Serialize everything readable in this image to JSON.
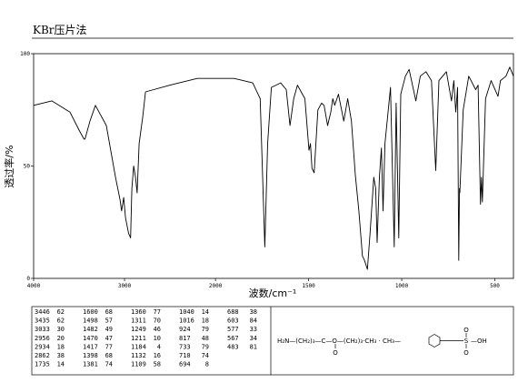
{
  "chart_data": {
    "type": "line",
    "title": "KBr压片法",
    "xlabel": "波数/cm⁻¹",
    "ylabel": "透过率/%",
    "xlim": [
      4000,
      400
    ],
    "ylim": [
      0,
      100
    ],
    "x_scale_break": 2000,
    "xticks": [
      4000,
      3000,
      2000,
      1500,
      1000,
      500
    ],
    "yticks": [
      0,
      50,
      100
    ],
    "color": "#000000",
    "x": [
      4000,
      3800,
      3600,
      3500,
      3446,
      3435,
      3380,
      3320,
      3200,
      3100,
      3050,
      3033,
      3010,
      2990,
      2956,
      2934,
      2920,
      2900,
      2880,
      2862,
      2840,
      2800,
      2770,
      2500,
      2200,
      2000,
      1900,
      1800,
      1760,
      1735,
      1720,
      1700,
      1650,
      1620,
      1600,
      1580,
      1560,
      1520,
      1498,
      1490,
      1482,
      1470,
      1450,
      1430,
      1417,
      1398,
      1381,
      1370,
      1360,
      1340,
      1311,
      1290,
      1270,
      1249,
      1230,
      1211,
      1200,
      1184,
      1170,
      1150,
      1140,
      1132,
      1120,
      1109,
      1100,
      1090,
      1060,
      1040,
      1030,
      1016,
      1005,
      980,
      960,
      924,
      900,
      870,
      840,
      817,
      800,
      760,
      733,
      720,
      710,
      700,
      694,
      690,
      688,
      670,
      640,
      603,
      590,
      577,
      572,
      567,
      550,
      520,
      483,
      470,
      440,
      420,
      400
    ],
    "values": [
      77,
      79,
      74,
      66,
      62,
      62,
      70,
      77,
      68,
      45,
      35,
      30,
      36,
      27,
      20,
      18,
      40,
      50,
      45,
      38,
      60,
      72,
      83,
      86,
      89,
      89,
      89,
      87,
      80,
      14,
      60,
      85,
      87,
      84,
      68,
      80,
      86,
      80,
      57,
      60,
      49,
      47,
      75,
      78,
      77,
      68,
      74,
      80,
      77,
      82,
      70,
      80,
      70,
      46,
      30,
      10,
      8,
      4,
      20,
      45,
      40,
      16,
      45,
      58,
      30,
      60,
      85,
      14,
      78,
      18,
      82,
      90,
      93,
      79,
      90,
      92,
      88,
      48,
      88,
      92,
      79,
      88,
      74,
      85,
      8,
      40,
      38,
      75,
      90,
      84,
      86,
      33,
      45,
      34,
      80,
      88,
      81,
      88,
      90,
      94,
      90
    ],
    "peak_table": {
      "wavenumbers": [
        3446,
        3435,
        3033,
        2956,
        2934,
        2862,
        1735,
        1600,
        1498,
        1482,
        1470,
        1417,
        1398,
        1381,
        1360,
        1311,
        1249,
        1211,
        1184,
        1132,
        1109,
        1040,
        1016,
        924,
        817,
        733,
        710,
        694,
        688,
        603,
        577,
        567,
        483
      ],
      "transmittance": [
        62,
        62,
        30,
        20,
        18,
        38,
        14,
        68,
        57,
        49,
        47,
        77,
        68,
        74,
        77,
        70,
        46,
        10,
        4,
        16,
        58,
        14,
        18,
        79,
        48,
        79,
        74,
        8,
        38,
        84,
        33,
        34,
        81
      ]
    }
  },
  "structure": {
    "chain": "H₂N—(CH₂)₃—C—O—(CH₂)₃·CH₃ · CH₃—",
    "carbonyl": "O",
    "sulfur": "S",
    "sulfonyl_top": "O",
    "sulfonyl_bottom": "O",
    "hydroxyl": "—OH"
  }
}
